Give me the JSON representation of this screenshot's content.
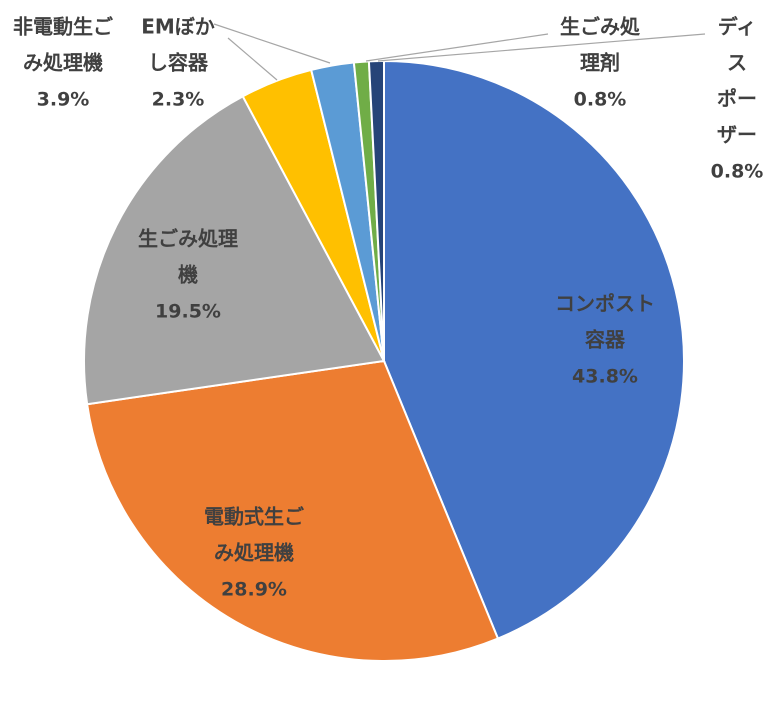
{
  "chart_data": {
    "type": "pie",
    "title": "",
    "start_angle_deg": 0,
    "direction": "clockwise",
    "slices": [
      {
        "label_lines": [
          "コンポスト",
          "容器"
        ],
        "pct_text": "43.8%",
        "value": 43.8,
        "color": "#4472C4",
        "label_color": "#404040"
      },
      {
        "label_lines": [
          "電動式生ご",
          "み処理機"
        ],
        "pct_text": "28.9%",
        "value": 28.9,
        "color": "#ED7D31",
        "label_color": "#404040"
      },
      {
        "label_lines": [
          "生ごみ処理",
          "機"
        ],
        "pct_text": "19.5%",
        "value": 19.5,
        "color": "#A5A5A5",
        "label_color": "#404040"
      },
      {
        "label_lines": [
          "非電動生ご",
          "み処理機"
        ],
        "pct_text": "3.9%",
        "value": 3.9,
        "color": "#FFC000",
        "label_color": "#404040"
      },
      {
        "label_lines": [
          "EMぼか",
          "し容器"
        ],
        "pct_text": "2.3%",
        "value": 2.3,
        "color": "#5B9BD5",
        "label_color": "#404040"
      },
      {
        "label_lines": [
          "生ごみ処",
          "理剤"
        ],
        "pct_text": "0.8%",
        "value": 0.8,
        "color": "#70AD47",
        "label_color": "#404040"
      },
      {
        "label_lines": [
          "ディ",
          "ス",
          "ポー",
          "ザー"
        ],
        "pct_text": "0.8%",
        "value": 0.8,
        "color": "#264478",
        "label_color": "#404040"
      }
    ]
  }
}
